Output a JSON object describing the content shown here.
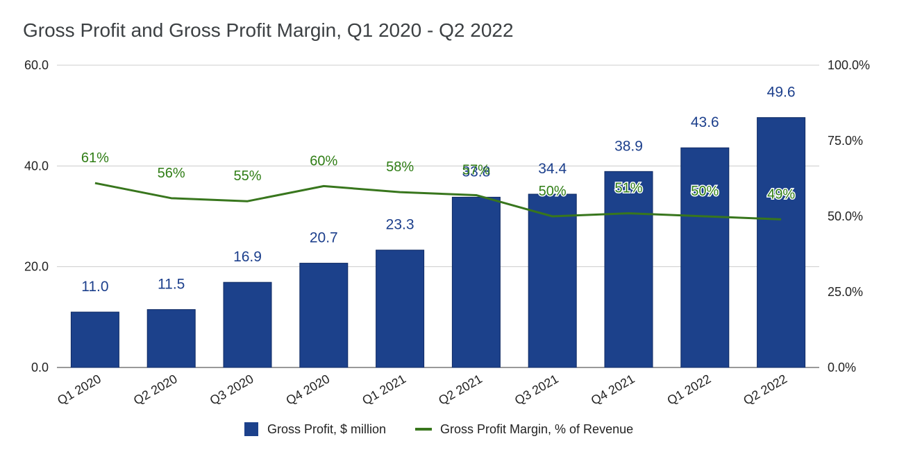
{
  "chart_data": {
    "type": "bar",
    "title": "Gross Profit and Gross Profit Margin, Q1 2020 - Q2 2022",
    "categories": [
      "Q1 2020",
      "Q2 2020",
      "Q3 2020",
      "Q4 2020",
      "Q1 2021",
      "Q2 2021",
      "Q3 2021",
      "Q4 2021",
      "Q1 2022",
      "Q2 2022"
    ],
    "series": [
      {
        "name": "Gross Profit, $ million",
        "type": "bar",
        "axis": "left",
        "color": "#1c418b",
        "values": [
          11.0,
          11.5,
          16.9,
          20.7,
          23.3,
          33.8,
          34.4,
          38.9,
          43.6,
          49.6
        ],
        "labels": [
          "11.0",
          "11.5",
          "16.9",
          "20.7",
          "23.3",
          "33.8",
          "34.4",
          "38.9",
          "43.6",
          "49.6"
        ]
      },
      {
        "name": "Gross Profit Margin, % of Revenue",
        "type": "line",
        "axis": "right",
        "color": "#38761d",
        "values": [
          61,
          56,
          55,
          60,
          58,
          57,
          50,
          51,
          50,
          49
        ],
        "labels": [
          "61%",
          "56%",
          "55%",
          "60%",
          "58%",
          "57%",
          "50%",
          "51%",
          "50%",
          "49%"
        ]
      }
    ],
    "left_axis": {
      "ylim": [
        0,
        60
      ],
      "ticks": [
        "0.0",
        "20.0",
        "40.0",
        "60.0"
      ]
    },
    "right_axis": {
      "ylim": [
        0,
        100
      ],
      "ticks": [
        "0.0%",
        "25.0%",
        "50.0%",
        "75.0%",
        "100.0%"
      ]
    },
    "grid": true,
    "legend_position": "bottom"
  }
}
